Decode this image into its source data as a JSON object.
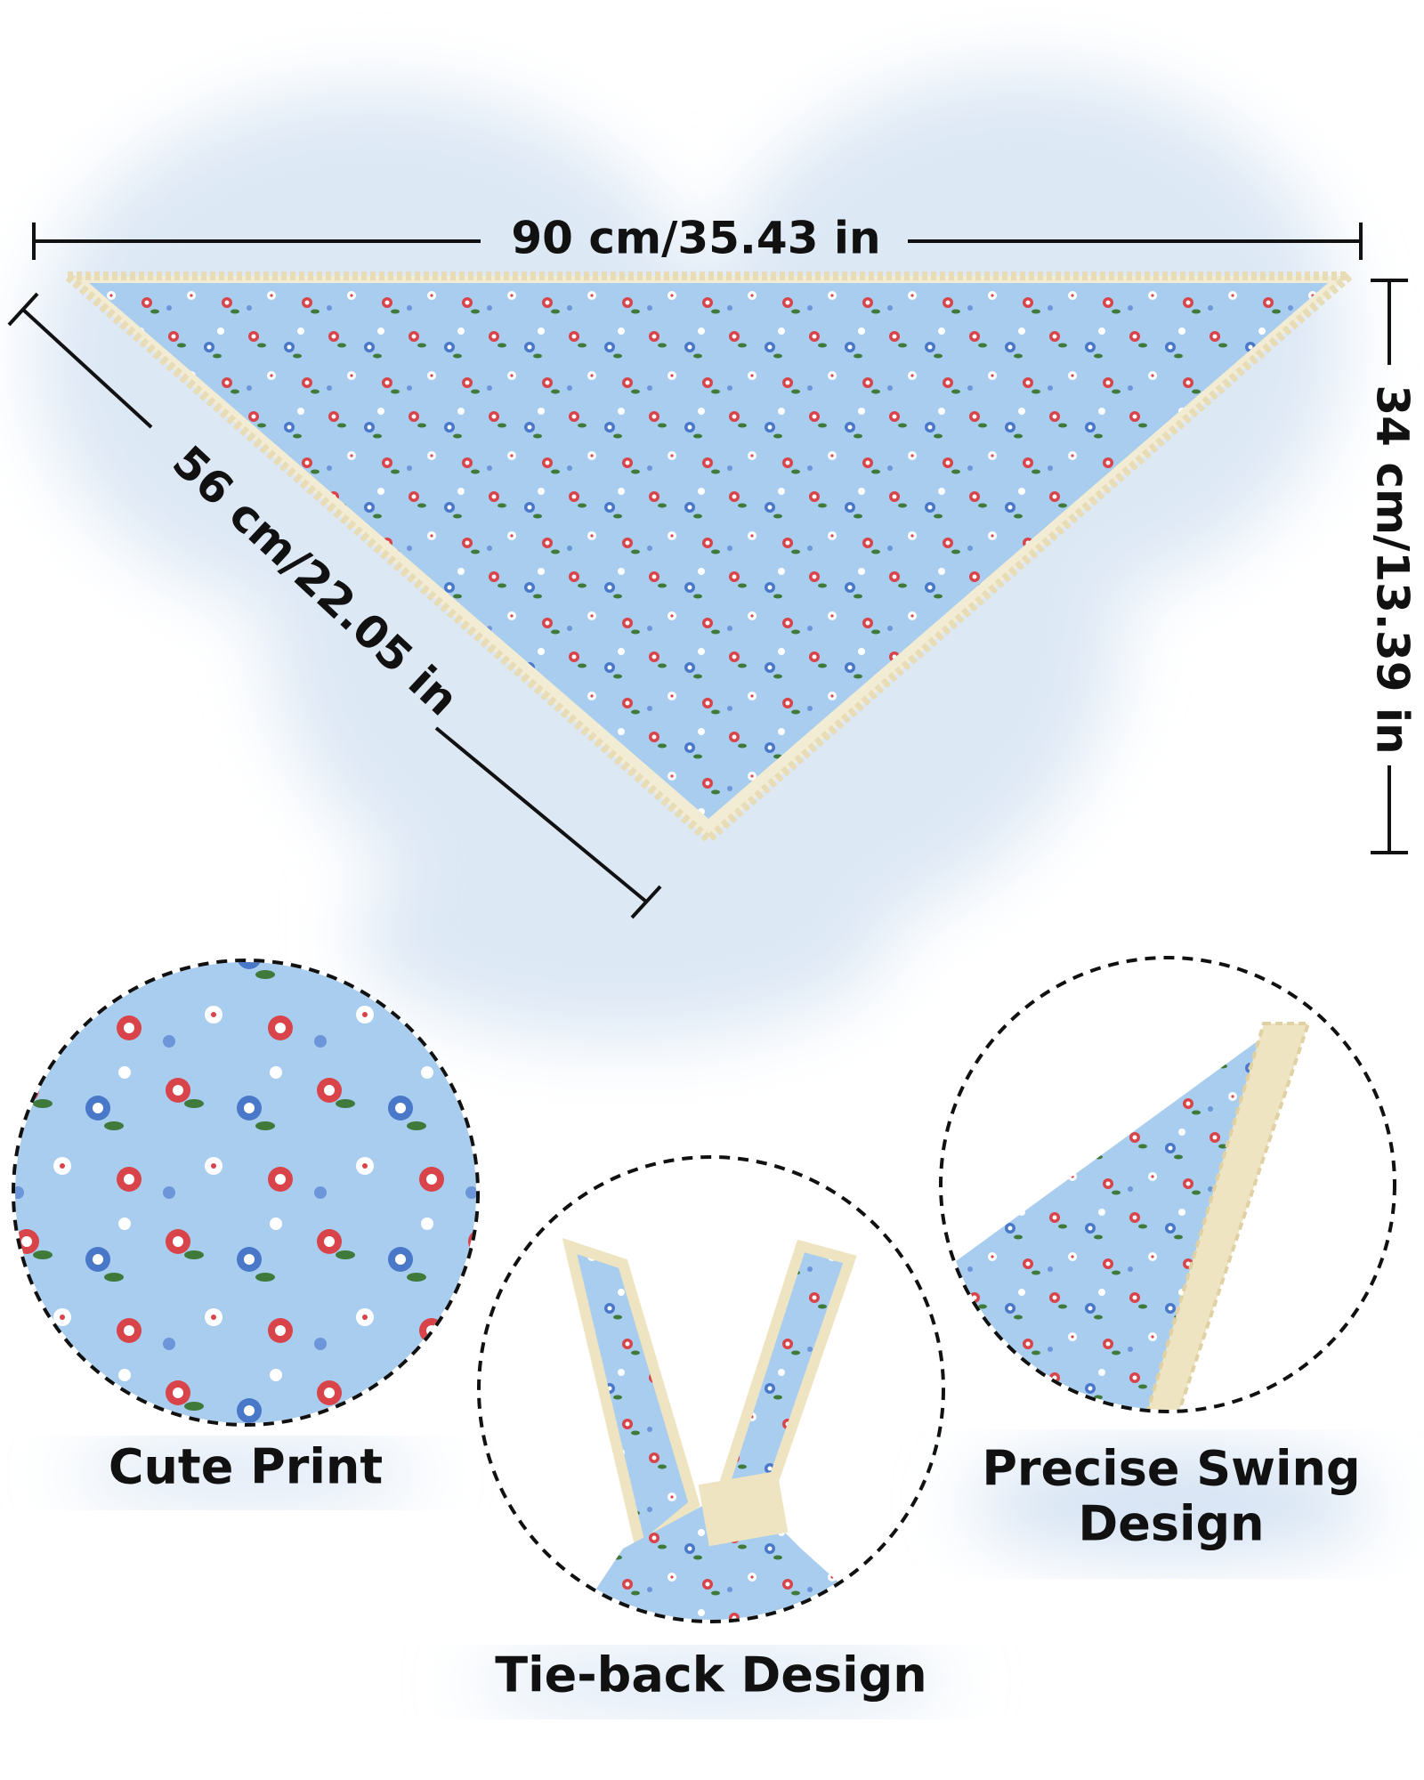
{
  "dimensions": {
    "width": "90 cm/35.43 in",
    "side": "56 cm/22.05 in",
    "height": "34 cm/13.39 in"
  },
  "features": [
    {
      "label": [
        "Cute Print"
      ]
    },
    {
      "label": [
        "Tie-back Design"
      ]
    },
    {
      "label": [
        "Precise Swing",
        "Design"
      ]
    }
  ]
}
